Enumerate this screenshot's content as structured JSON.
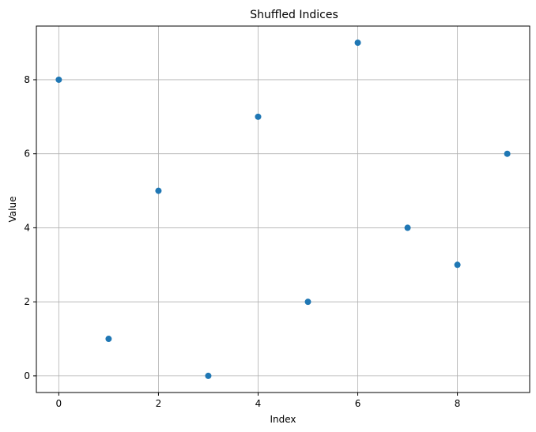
{
  "chart_data": {
    "type": "scatter",
    "title": "Shuffled Indices",
    "xlabel": "Index",
    "ylabel": "Value",
    "xlim": [
      -0.45,
      9.45
    ],
    "ylim": [
      -0.45,
      9.45
    ],
    "xticks": [
      0,
      2,
      4,
      6,
      8
    ],
    "yticks": [
      0,
      2,
      4,
      6,
      8
    ],
    "grid": true,
    "marker_color": "#1f77b4",
    "series": [
      {
        "x": [
          0,
          1,
          2,
          3,
          4,
          5,
          6,
          7,
          8,
          9
        ],
        "y": [
          8,
          1,
          5,
          0,
          7,
          2,
          9,
          4,
          3,
          6
        ]
      }
    ]
  }
}
